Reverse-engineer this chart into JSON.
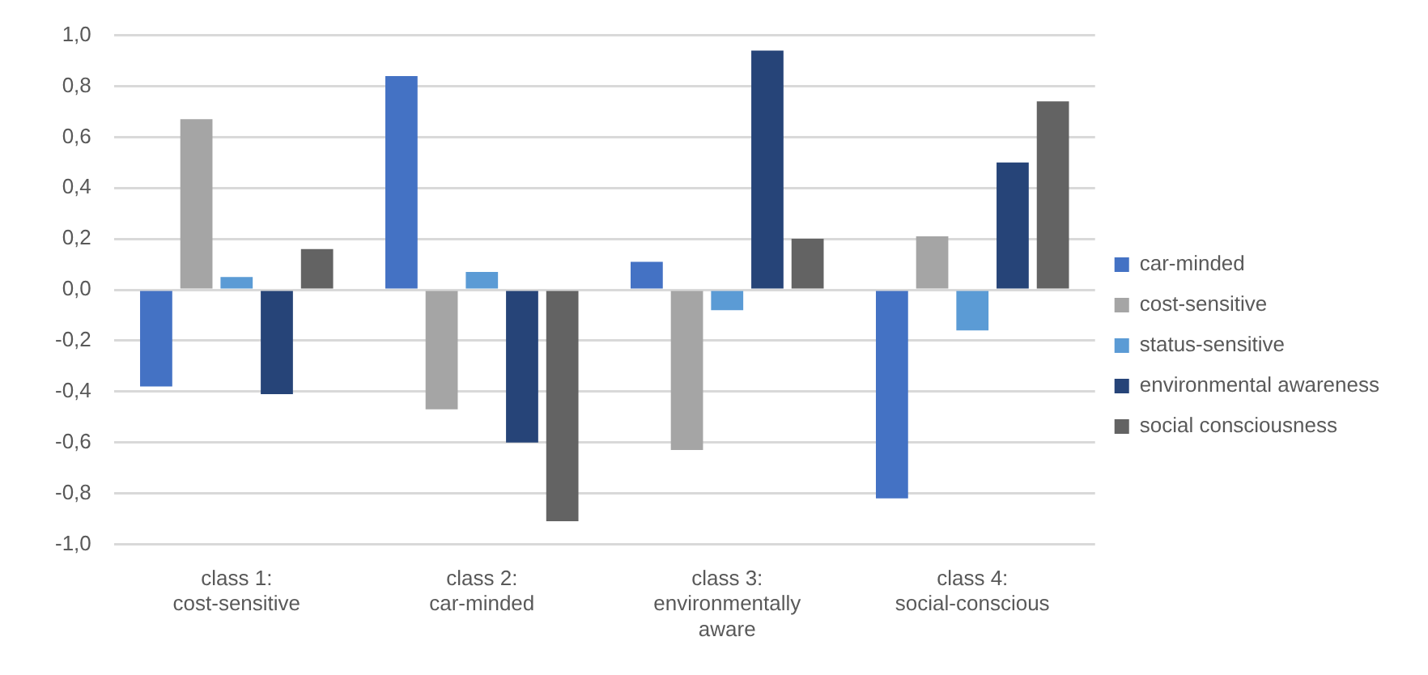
{
  "chart_data": {
    "type": "bar",
    "categories": [
      "class 1:\ncost-sensitive",
      "class 2:\ncar-minded",
      "class 3:\nenvironmentally\naware",
      "class 4:\nsocial-conscious"
    ],
    "series": [
      {
        "name": "car-minded",
        "color": "#4472c4",
        "values": [
          -0.38,
          0.84,
          0.11,
          -0.82
        ]
      },
      {
        "name": "cost-sensitive",
        "color": "#a5a5a5",
        "values": [
          0.67,
          -0.47,
          -0.63,
          0.21
        ]
      },
      {
        "name": "status-sensitive",
        "color": "#5b9bd5",
        "values": [
          0.05,
          0.07,
          -0.08,
          -0.16
        ]
      },
      {
        "name": "environmental awareness",
        "color": "#264478",
        "values": [
          -0.41,
          -0.6,
          0.94,
          0.5
        ]
      },
      {
        "name": "social consciousness",
        "color": "#636363",
        "values": [
          0.16,
          -0.91,
          0.2,
          0.74
        ]
      }
    ],
    "ylim": [
      -1,
      1
    ],
    "yticks": [
      {
        "value": -1,
        "label": "-1,0"
      },
      {
        "value": -0.8,
        "label": "-0,8"
      },
      {
        "value": -0.6,
        "label": "-0,6"
      },
      {
        "value": -0.4,
        "label": "-0,4"
      },
      {
        "value": -0.2,
        "label": "-0,2"
      },
      {
        "value": 0,
        "label": "0,0"
      },
      {
        "value": 0.2,
        "label": "0,2"
      },
      {
        "value": 0.4,
        "label": "0,4"
      },
      {
        "value": 0.6,
        "label": "0,6"
      },
      {
        "value": 0.8,
        "label": "0,8"
      },
      {
        "value": 1,
        "label": "1,0"
      }
    ],
    "grid": "y",
    "legend": "right"
  }
}
